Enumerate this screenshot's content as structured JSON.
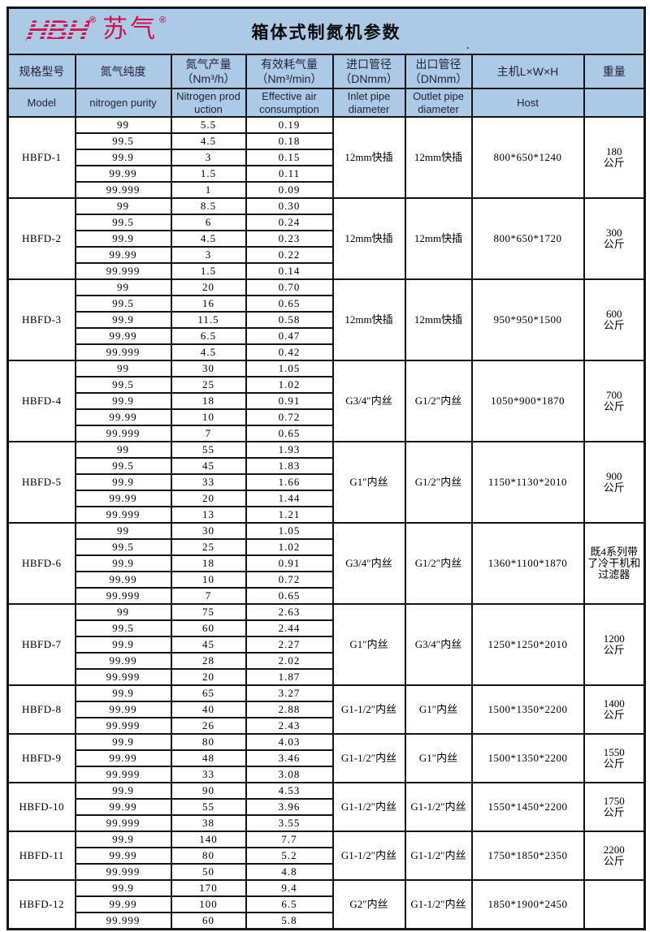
{
  "colors": {
    "band_blue": "#abcae6",
    "border_black": "#141414",
    "logo_red": "#d2134e",
    "header_text": "#232335",
    "body_text": "#000000",
    "page_background": "#ffffff"
  },
  "branding": {
    "logo_latin": "HBH",
    "logo_reg": "®",
    "logo_cn": "苏气",
    "logo_cn_reg": "®"
  },
  "header": {
    "title": "箱体式制氮机参数",
    "stray_mark": "."
  },
  "table": {
    "headers_cn": [
      "规格型号",
      "氮气纯度",
      "氮气产量\n（Nm³/h）",
      "有效耗气量\n（Nm³/min）",
      "进口管径\n（DNmm）",
      "出口管径\n（DNmm）",
      "主机L×W×H",
      "重量"
    ],
    "headers_en": [
      "Model",
      "nitrogen purity",
      "Nitrogen prod\nuction",
      "Effective air\nconsumption",
      "Inlet pipe\ndiameter",
      "Outlet pipe\ndiameter",
      "Host",
      ""
    ],
    "models": [
      {
        "model": "HBFD-1",
        "rows": [
          [
            "99",
            "5.5",
            "0.19"
          ],
          [
            "99.5",
            "4.5",
            "0.18"
          ],
          [
            "99.9",
            "3",
            "0.15"
          ],
          [
            "99.99",
            "1.5",
            "0.11"
          ],
          [
            "99.999",
            "1",
            "0.09"
          ]
        ],
        "inlet": "12mm快插",
        "outlet": "12mm快插",
        "host": "800*650*1240",
        "weight": "180\n公斤"
      },
      {
        "model": "HBFD-2",
        "rows": [
          [
            "99",
            "8.5",
            "0.30"
          ],
          [
            "99.5",
            "6",
            "0.24"
          ],
          [
            "99.9",
            "4.5",
            "0.23"
          ],
          [
            "99.99",
            "3",
            "0.22"
          ],
          [
            "99.999",
            "1.5",
            "0.14"
          ]
        ],
        "inlet": "12mm快插",
        "outlet": "12mm快插",
        "host": "800*650*1720",
        "weight": "300\n公斤"
      },
      {
        "model": "HBFD-3",
        "rows": [
          [
            "99",
            "20",
            "0.70"
          ],
          [
            "99.5",
            "16",
            "0.65"
          ],
          [
            "99.9",
            "11.5",
            "0.58"
          ],
          [
            "99.99",
            "6.5",
            "0.47"
          ],
          [
            "99.999",
            "4.5",
            "0.42"
          ]
        ],
        "inlet": "12mm快插",
        "outlet": "12mm快插",
        "host": "950*950*1500",
        "weight": "600\n公斤"
      },
      {
        "model": "HBFD-4",
        "rows": [
          [
            "99",
            "30",
            "1.05"
          ],
          [
            "99.5",
            "25",
            "1.02"
          ],
          [
            "99.9",
            "18",
            "0.91"
          ],
          [
            "99.99",
            "10",
            "0.72"
          ],
          [
            "99.999",
            "7",
            "0.65"
          ]
        ],
        "inlet": "G3/4″内丝",
        "outlet": "G1/2″内丝",
        "host": "1050*900*1870",
        "weight": "700\n公斤"
      },
      {
        "model": "HBFD-5",
        "rows": [
          [
            "99",
            "55",
            "1.93"
          ],
          [
            "99.5",
            "45",
            "1.83"
          ],
          [
            "99.9",
            "33",
            "1.66"
          ],
          [
            "99.99",
            "20",
            "1.44"
          ],
          [
            "99.999",
            "13",
            "1.21"
          ]
        ],
        "inlet": "G1″内丝",
        "outlet": "G1/2″内丝",
        "host": "1150*1130*2010",
        "weight": "900\n公斤"
      },
      {
        "model": "HBFD-6",
        "rows": [
          [
            "99",
            "30",
            "1.05"
          ],
          [
            "99.5",
            "25",
            "1.02"
          ],
          [
            "99.9",
            "18",
            "0.91"
          ],
          [
            "99.99",
            "10",
            "0.72"
          ],
          [
            "99.999",
            "7",
            "0.65"
          ]
        ],
        "inlet": "G3/4″内丝",
        "outlet": "G1/2″内丝",
        "host": "1360*1100*1870",
        "weight": "既4系列带\n了冷干机和\n过滤器"
      },
      {
        "model": "HBFD-7",
        "rows": [
          [
            "99",
            "75",
            "2.63"
          ],
          [
            "99.5",
            "60",
            "2.44"
          ],
          [
            "99.9",
            "45",
            "2.27"
          ],
          [
            "99.99",
            "28",
            "2.02"
          ],
          [
            "99.999",
            "20",
            "1.87"
          ]
        ],
        "inlet": "G1″内丝",
        "outlet": "G3/4″内丝",
        "host": "1250*1250*2010",
        "weight": "1200\n公斤"
      },
      {
        "model": "HBFD-8",
        "rows": [
          [
            "99.9",
            "65",
            "3.27"
          ],
          [
            "99.99",
            "40",
            "2.88"
          ],
          [
            "99.999",
            "26",
            "2.43"
          ]
        ],
        "inlet": "G1-1/2″内丝",
        "outlet": "G1″内丝",
        "host": "1500*1350*2200",
        "weight": "1400\n公斤"
      },
      {
        "model": "HBFD-9",
        "rows": [
          [
            "99.9",
            "80",
            "4.03"
          ],
          [
            "99.99",
            "48",
            "3.46"
          ],
          [
            "99.999",
            "33",
            "3.08"
          ]
        ],
        "inlet": "G1-1/2″内丝",
        "outlet": "G1″内丝",
        "host": "1500*1350*2200",
        "weight": "1550\n公斤"
      },
      {
        "model": "HBFD-10",
        "rows": [
          [
            "99.9",
            "90",
            "4.53"
          ],
          [
            "99.99",
            "55",
            "3.96"
          ],
          [
            "99.999",
            "38",
            "3.55"
          ]
        ],
        "inlet": "G1-1/2″内丝",
        "outlet": "G1-1/2″内丝",
        "host": "1550*1450*2200",
        "weight": "1750\n公斤"
      },
      {
        "model": "HBFD-11",
        "rows": [
          [
            "99.9",
            "140",
            "7.7"
          ],
          [
            "99.99",
            "80",
            "5.2"
          ],
          [
            "99.999",
            "50",
            "4.8"
          ]
        ],
        "inlet": "G1-1/2″内丝",
        "outlet": "G1-1/2″内丝",
        "host": "1750*1850*2350",
        "weight": "2200\n公斤"
      },
      {
        "model": "HBFD-12",
        "rows": [
          [
            "99.9",
            "170",
            "9.4"
          ],
          [
            "99.99",
            "100",
            "6.5"
          ],
          [
            "99.999",
            "60",
            "5.8"
          ]
        ],
        "inlet": "G2″内丝",
        "outlet": "G1-1/2″内丝",
        "host": "1850*1900*2450",
        "weight": ""
      }
    ]
  }
}
